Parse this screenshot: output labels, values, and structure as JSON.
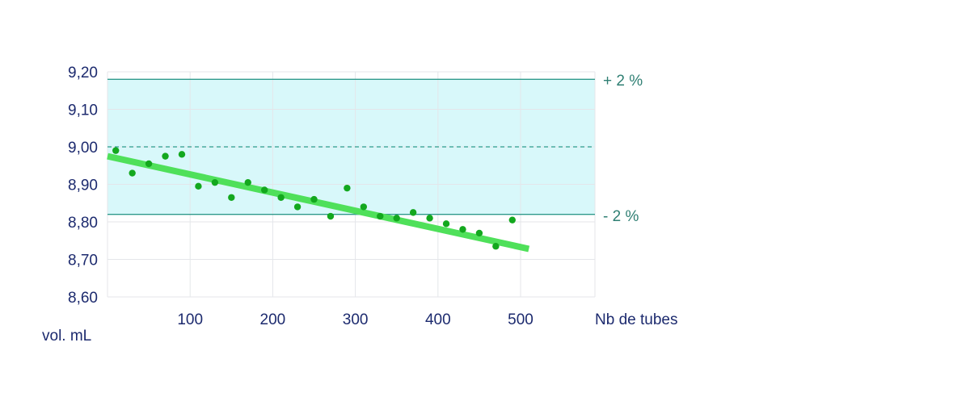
{
  "chart_data": {
    "type": "scatter",
    "title": "",
    "xlabel": "Nb de tubes",
    "ylabel": "vol. mL",
    "xlim": [
      0,
      590
    ],
    "ylim": [
      8.6,
      9.2
    ],
    "x_ticks": [
      100,
      200,
      300,
      400,
      500
    ],
    "x_tick_labels": [
      "100",
      "200",
      "300",
      "400",
      "500"
    ],
    "y_ticks": [
      8.6,
      8.7,
      8.8,
      8.9,
      9.0,
      9.1,
      9.2
    ],
    "y_tick_labels": [
      "8,60",
      "8,70",
      "8,80",
      "8,90",
      "9,00",
      "9,10",
      "9,20"
    ],
    "grid": true,
    "tolerance_band": {
      "upper": 9.18,
      "lower": 8.82,
      "nominal": 9.0,
      "upper_label": "+ 2 %",
      "lower_label": "- 2 %",
      "fill_color": "#d8f8fa",
      "line_color": "#2f9a8c"
    },
    "trend_line": {
      "x": [
        0,
        510
      ],
      "y": [
        8.975,
        8.728
      ],
      "color": "#4fe05a"
    },
    "points": {
      "color": "#13a81e",
      "x": [
        10,
        30,
        50,
        70,
        90,
        110,
        130,
        150,
        170,
        190,
        210,
        230,
        250,
        270,
        290,
        310,
        330,
        350,
        370,
        390,
        410,
        430,
        450,
        470,
        490
      ],
      "y": [
        8.99,
        8.93,
        8.955,
        8.975,
        8.98,
        8.895,
        8.905,
        8.865,
        8.905,
        8.885,
        8.865,
        8.84,
        8.86,
        8.815,
        8.89,
        8.84,
        8.815,
        8.81,
        8.825,
        8.81,
        8.795,
        8.78,
        8.77,
        8.735,
        8.805
      ]
    }
  }
}
